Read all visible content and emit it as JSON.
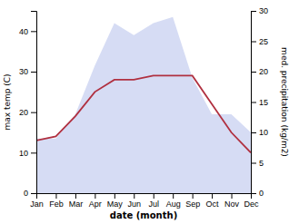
{
  "chart_data": {
    "type": "line",
    "categories": [
      "Jan",
      "Feb",
      "Mar",
      "Apr",
      "May",
      "Jun",
      "Jul",
      "Aug",
      "Sep",
      "Oct",
      "Nov",
      "Dec"
    ],
    "xlabel": "date (month)",
    "ylabel": "max temp (C)",
    "y2label": "med. precipitation (kg/m2)",
    "series": [
      {
        "type": "area",
        "axis": "y2",
        "color": "#c8d0f0",
        "values": [
          9,
          9,
          13,
          21,
          28,
          26,
          28,
          29,
          19,
          13,
          13,
          10
        ]
      },
      {
        "type": "line",
        "color": "#b03040",
        "values": [
          13,
          14,
          19,
          25,
          28,
          28,
          29,
          29,
          29,
          22,
          15,
          10
        ]
      }
    ],
    "ylim": [
      0,
      45
    ],
    "yticks": [
      0,
      10,
      20,
      30,
      40
    ],
    "y2lim": [
      0,
      30
    ],
    "y2ticks": [
      0,
      5,
      10,
      15,
      20,
      25,
      30
    ],
    "grid": false
  }
}
